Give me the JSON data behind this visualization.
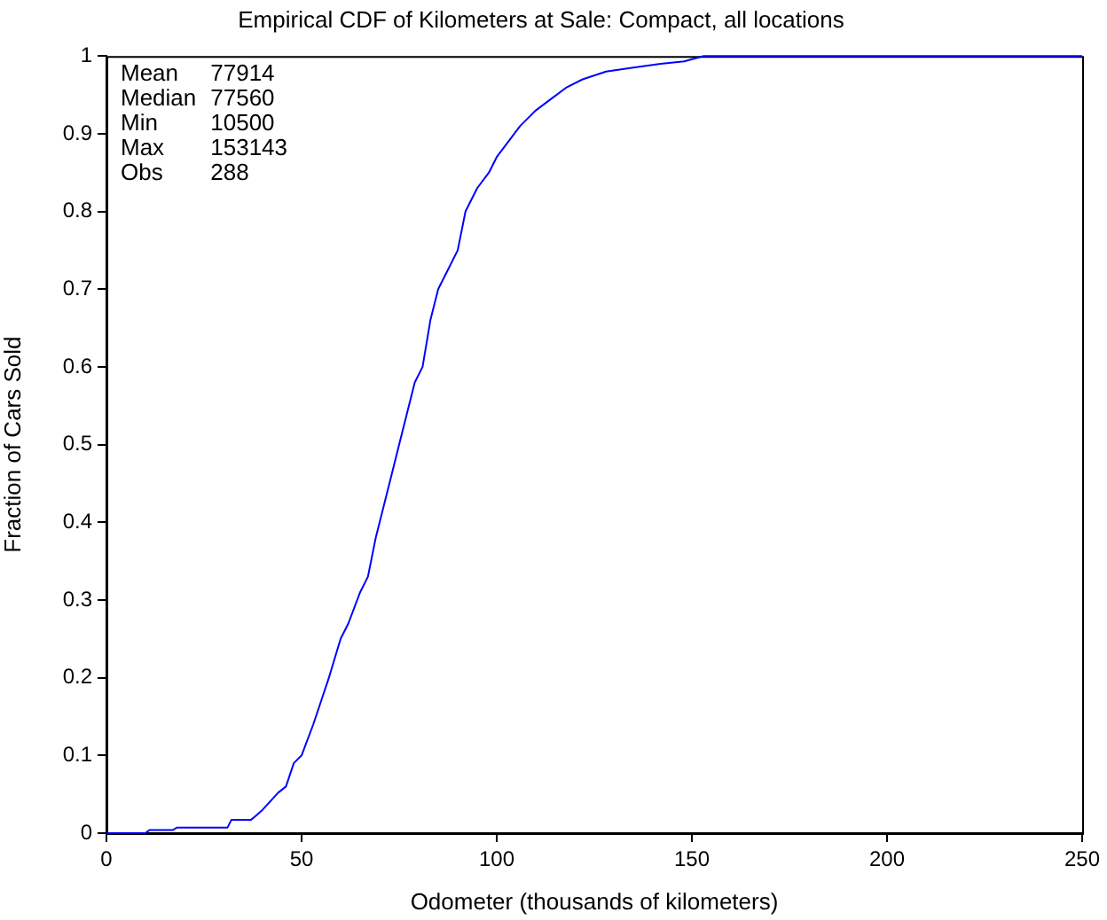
{
  "chart_data": {
    "type": "line",
    "title": "Empirical CDF of Kilometers at Sale: Compact, all locations",
    "xlabel": "Odometer (thousands of kilometers)",
    "ylabel": "Fraction of Cars Sold",
    "annotations": [
      "Mean 77914",
      "Median 77560",
      "Min 10500",
      "Max 153143",
      "Obs 288"
    ],
    "x": [
      0,
      10,
      11,
      17,
      18,
      31,
      32,
      37,
      38,
      40,
      44,
      46,
      48,
      50,
      53,
      55,
      57,
      60,
      62,
      65,
      67,
      69,
      71,
      73,
      75,
      77,
      79,
      81,
      83,
      85,
      88,
      90,
      92,
      95,
      98,
      100,
      103,
      106,
      110,
      114,
      118,
      122,
      128,
      135,
      142,
      148,
      153,
      250
    ],
    "series": [
      {
        "color": "#0000ff",
        "values": [
          0,
          0,
          0.004,
          0.004,
          0.007,
          0.007,
          0.017,
          0.017,
          0.021,
          0.03,
          0.052,
          0.06,
          0.09,
          0.1,
          0.14,
          0.17,
          0.2,
          0.25,
          0.27,
          0.31,
          0.33,
          0.38,
          0.42,
          0.46,
          0.5,
          0.54,
          0.58,
          0.6,
          0.66,
          0.7,
          0.73,
          0.75,
          0.8,
          0.83,
          0.85,
          0.87,
          0.89,
          0.91,
          0.93,
          0.945,
          0.96,
          0.97,
          0.98,
          0.985,
          0.99,
          0.993,
          1,
          1
        ]
      }
    ],
    "xlim": [
      0,
      250
    ],
    "ylim": [
      0,
      1
    ],
    "xticks": [
      0,
      50,
      100,
      150,
      200,
      250
    ],
    "yticks": [
      0,
      0.1,
      0.2,
      0.3,
      0.4,
      0.5,
      0.6,
      0.7,
      0.8,
      0.9,
      1
    ],
    "grid": false,
    "legend": false,
    "marker": "none",
    "line_style": "solid"
  }
}
